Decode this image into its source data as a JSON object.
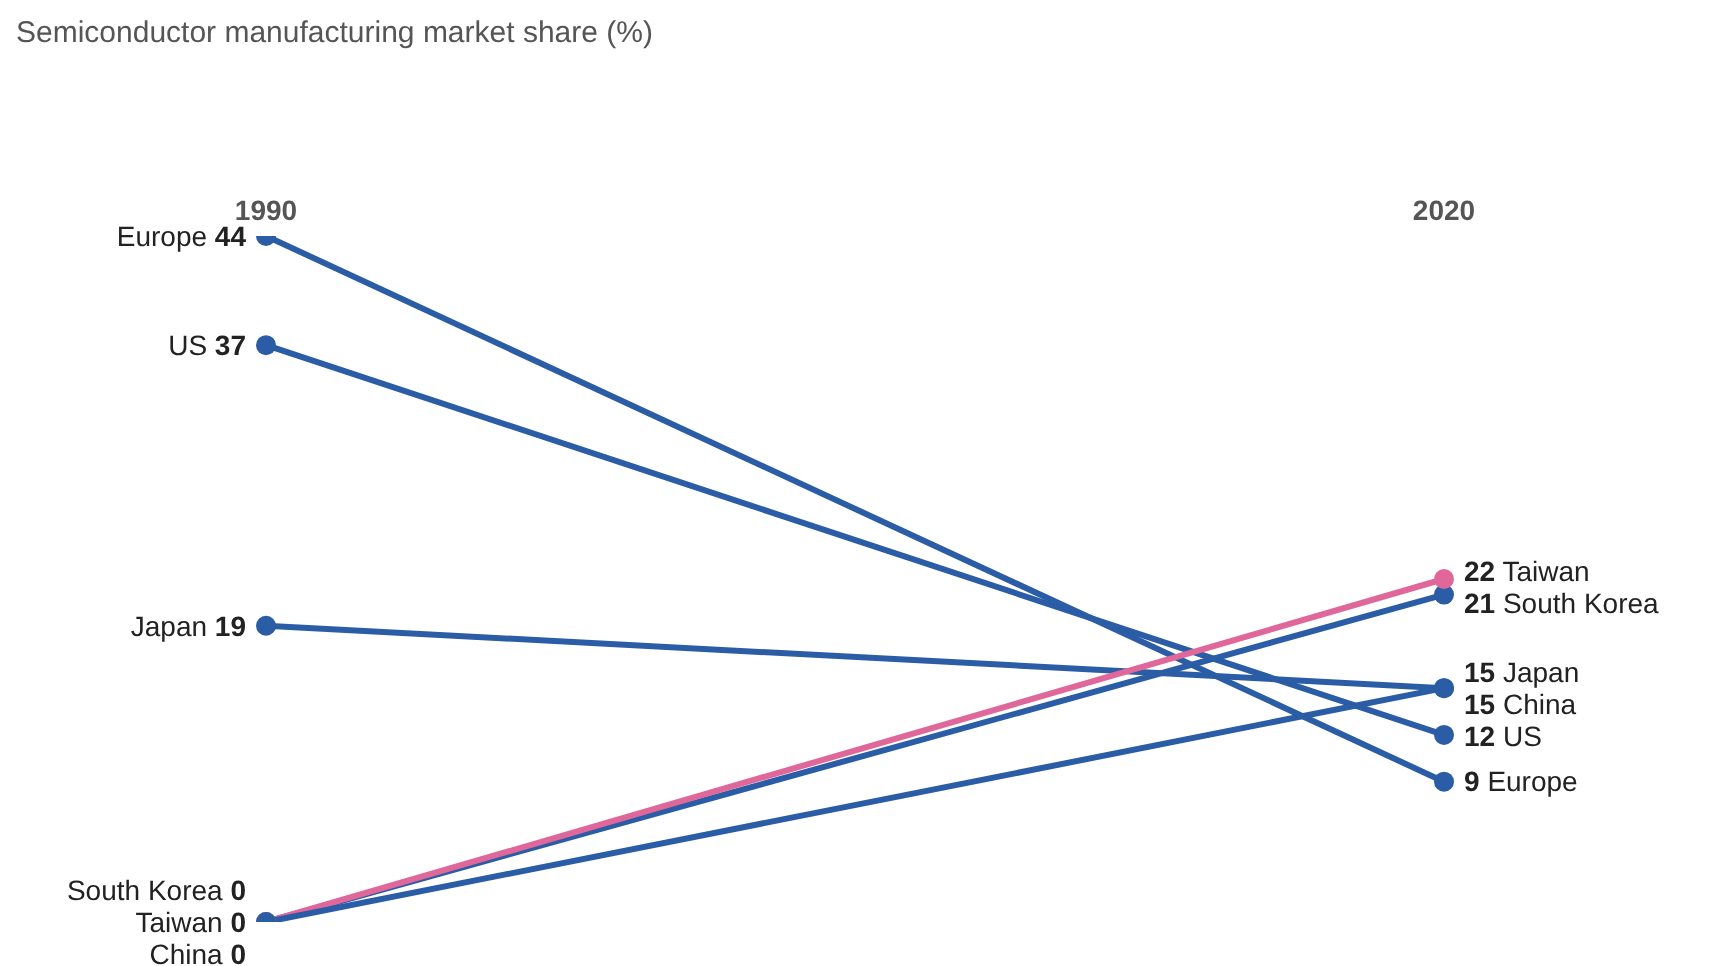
{
  "chart_data": {
    "type": "line",
    "title": "Semiconductor manufacturing market share (%)",
    "categories": [
      "1990",
      "2020"
    ],
    "series": [
      {
        "name": "Europe",
        "color": "#2b5ca6",
        "values": [
          44,
          9
        ]
      },
      {
        "name": "US",
        "color": "#2b5ca6",
        "values": [
          37,
          12
        ]
      },
      {
        "name": "Japan",
        "color": "#2b5ca6",
        "values": [
          19,
          15
        ]
      },
      {
        "name": "South Korea",
        "color": "#2b5ca6",
        "values": [
          0,
          21
        ]
      },
      {
        "name": "Taiwan",
        "color": "#e0679a",
        "values": [
          0,
          22
        ]
      },
      {
        "name": "China",
        "color": "#2b5ca6",
        "values": [
          0,
          15
        ]
      }
    ],
    "data_labels": true,
    "legend": false,
    "grid": false,
    "tick_labels": "x",
    "marker": "circle",
    "line_style": "solid"
  }
}
